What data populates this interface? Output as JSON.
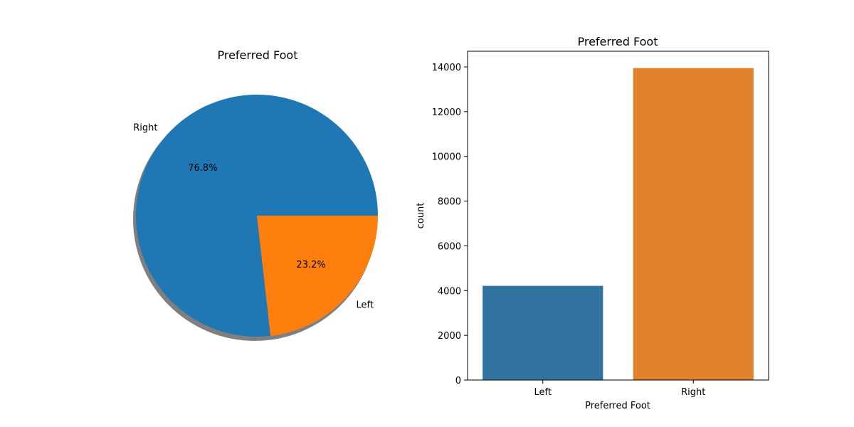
{
  "chart_data": [
    {
      "type": "pie",
      "title": "Preferred Foot",
      "labels": [
        "Right",
        "Left"
      ],
      "values": [
        76.8,
        23.2
      ],
      "autopct": [
        "76.8%",
        "23.2%"
      ],
      "colors": [
        "#1f77b4",
        "#ff7f0e"
      ],
      "shadow": true,
      "start_angle_deg": 0
    },
    {
      "type": "bar",
      "title": "Preferred Foot",
      "xlabel": "Preferred Foot",
      "ylabel": "count",
      "categories": [
        "Left",
        "Right"
      ],
      "values": [
        4211,
        13948
      ],
      "colors": [
        "#3274a1",
        "#e1812c"
      ],
      "ylim": [
        0,
        14700
      ],
      "yticks": [
        0,
        2000,
        4000,
        6000,
        8000,
        10000,
        12000,
        14000
      ],
      "ytick_labels": [
        "0",
        "2000",
        "4000",
        "6000",
        "8000",
        "10000",
        "12000",
        "14000"
      ],
      "grid": false
    }
  ]
}
